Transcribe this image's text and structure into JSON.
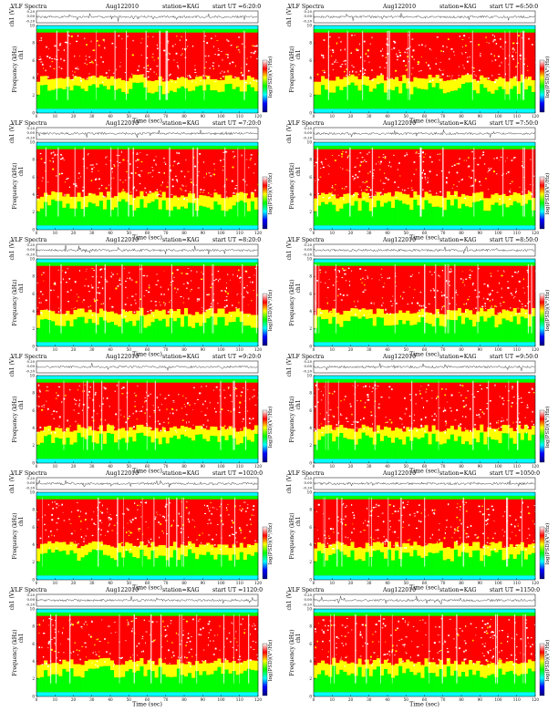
{
  "header": {
    "program": "VLF  Spectra",
    "date": "Aug122010",
    "station": "station=KAG",
    "start_prefix": "start  UT  ="
  },
  "axes": {
    "wave_ylabel": "ch1 (V)",
    "freq_ylabel": "Frequency (kHz)",
    "freq_ylabel_alt": "ch1",
    "xlabel": "Time  (sec)",
    "colorbar_label": "log(PSD)(V²/Hz)",
    "wave_ticks": [
      "0.20",
      "0.00",
      "-0.20"
    ],
    "freq_ticks": [
      "10",
      "8",
      "6",
      "4",
      "2",
      "0"
    ],
    "time_ticks": [
      "0",
      "10",
      "20",
      "30",
      "40",
      "50",
      "60",
      "70",
      "80",
      "90",
      "100",
      "110",
      "120"
    ]
  },
  "chart_data": [
    {
      "type": "heatmap",
      "title": "VLF Spectra",
      "start_ut": "6:20:0",
      "xlabel": "Time (sec)",
      "ylabel": "Frequency (kHz)",
      "xlim": [
        0,
        120
      ],
      "ylim": [
        0,
        10
      ],
      "waveform_ylim": [
        -0.2,
        0.2
      ],
      "color_scale": [
        "#000080",
        "#0000ff",
        "#00ffff",
        "#00ff00",
        "#ffff00",
        "#ff0000",
        "#ffffff"
      ]
    },
    {
      "type": "heatmap",
      "title": "VLF Spectra",
      "start_ut": "6:50:0",
      "xlabel": "Time (sec)",
      "ylabel": "Frequency (kHz)",
      "xlim": [
        0,
        120
      ],
      "ylim": [
        0,
        10
      ],
      "waveform_ylim": [
        -0.2,
        0.2
      ]
    },
    {
      "type": "heatmap",
      "title": "VLF Spectra",
      "start_ut": "7:20:0",
      "xlabel": "Time (sec)",
      "ylabel": "Frequency (kHz)",
      "xlim": [
        0,
        120
      ],
      "ylim": [
        0,
        10
      ],
      "waveform_ylim": [
        -0.2,
        0.2
      ]
    },
    {
      "type": "heatmap",
      "title": "VLF Spectra",
      "start_ut": "7:50:0",
      "xlabel": "Time (sec)",
      "ylabel": "Frequency (kHz)",
      "xlim": [
        0,
        120
      ],
      "ylim": [
        0,
        10
      ],
      "waveform_ylim": [
        -0.2,
        0.2
      ]
    },
    {
      "type": "heatmap",
      "title": "VLF Spectra",
      "start_ut": "8:20:0",
      "xlabel": "Time (sec)",
      "ylabel": "Frequency (kHz)",
      "xlim": [
        0,
        120
      ],
      "ylim": [
        0,
        10
      ],
      "waveform_ylim": [
        -0.2,
        0.2
      ]
    },
    {
      "type": "heatmap",
      "title": "VLF Spectra",
      "start_ut": "8:50:0",
      "xlabel": "Time (sec)",
      "ylabel": "Frequency (kHz)",
      "xlim": [
        0,
        120
      ],
      "ylim": [
        0,
        10
      ],
      "waveform_ylim": [
        -0.2,
        0.2
      ]
    },
    {
      "type": "heatmap",
      "title": "VLF Spectra",
      "start_ut": "9:20:0",
      "xlabel": "Time (sec)",
      "ylabel": "Frequency (kHz)",
      "xlim": [
        0,
        120
      ],
      "ylim": [
        0,
        10
      ],
      "waveform_ylim": [
        -0.2,
        0.2
      ]
    },
    {
      "type": "heatmap",
      "title": "VLF Spectra",
      "start_ut": "9:50:0",
      "xlabel": "Time (sec)",
      "ylabel": "Frequency (kHz)",
      "xlim": [
        0,
        120
      ],
      "ylim": [
        0,
        10
      ],
      "waveform_ylim": [
        -0.2,
        0.2
      ]
    },
    {
      "type": "heatmap",
      "title": "VLF Spectra",
      "start_ut": "1020:0",
      "xlabel": "Time (sec)",
      "ylabel": "Frequency (kHz)",
      "xlim": [
        0,
        120
      ],
      "ylim": [
        0,
        10
      ],
      "waveform_ylim": [
        -0.2,
        0.2
      ]
    },
    {
      "type": "heatmap",
      "title": "VLF Spectra",
      "start_ut": "1050:0",
      "xlabel": "Time (sec)",
      "ylabel": "Frequency (kHz)",
      "xlim": [
        0,
        120
      ],
      "ylim": [
        0,
        10
      ],
      "waveform_ylim": [
        -0.2,
        0.2
      ]
    },
    {
      "type": "heatmap",
      "title": "VLF Spectra",
      "start_ut": "1120:0",
      "xlabel": "Time (sec)",
      "ylabel": "Frequency (kHz)",
      "xlim": [
        0,
        120
      ],
      "ylim": [
        0,
        10
      ],
      "waveform_ylim": [
        -0.2,
        0.2
      ]
    },
    {
      "type": "heatmap",
      "title": "VLF Spectra",
      "start_ut": "1150:0",
      "xlabel": "Time (sec)",
      "ylabel": "Frequency (kHz)",
      "xlim": [
        0,
        120
      ],
      "ylim": [
        0,
        10
      ],
      "waveform_ylim": [
        -0.2,
        0.2
      ]
    }
  ]
}
